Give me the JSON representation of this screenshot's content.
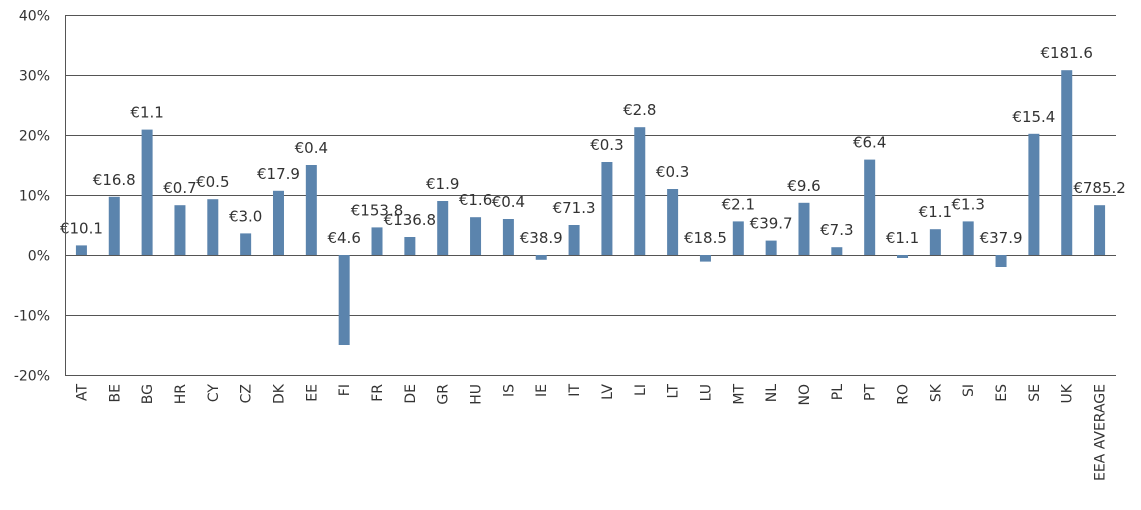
{
  "chart_data": {
    "type": "bar",
    "bar_color": "#5b84ad",
    "ylim": [
      -20,
      40
    ],
    "y_ticks": [
      40,
      30,
      20,
      10,
      0,
      -10,
      -20
    ],
    "y_tick_labels": [
      "40%",
      "30%",
      "20%",
      "10%",
      "0%",
      "-10%",
      "-20%"
    ],
    "grid": true,
    "categories": [
      "AT",
      "BE",
      "BG",
      "HR",
      "CY",
      "CZ",
      "DK",
      "EE",
      "FI",
      "FR",
      "DE",
      "GR",
      "HU",
      "IS",
      "IE",
      "IT",
      "LV",
      "LI",
      "LT",
      "LU",
      "MT",
      "NL",
      "NO",
      "PL",
      "PT",
      "RO",
      "SK",
      "SI",
      "ES",
      "SE",
      "UK",
      "EEA AVERAGE"
    ],
    "values": [
      1.6,
      9.7,
      20.9,
      8.3,
      9.3,
      3.6,
      10.7,
      15.0,
      -15.0,
      4.6,
      3.0,
      9.0,
      6.3,
      6.0,
      -0.8,
      5.0,
      15.5,
      21.3,
      11.0,
      -1.1,
      5.6,
      2.4,
      8.7,
      1.3,
      15.9,
      -0.5,
      4.3,
      5.6,
      -2.0,
      20.2,
      30.8,
      8.3
    ],
    "data_labels": [
      "€10.1",
      "€16.8",
      "€1.1",
      "€0.7",
      "€0.5",
      "€3.0",
      "€17.9",
      "€0.4",
      "€4.6",
      "€153.8",
      "€136.8",
      "€1.9",
      "€1.6",
      "€0.4",
      "€38.9",
      "€71.3",
      "€0.3",
      "€2.8",
      "€0.3",
      "€18.5",
      "€2.1",
      "€39.7",
      "€9.6",
      "€7.3",
      "€6.4",
      "€1.1",
      "€1.1",
      "€1.3",
      "€37.9",
      "€15.4",
      "€181.6",
      "€785.2"
    ]
  }
}
